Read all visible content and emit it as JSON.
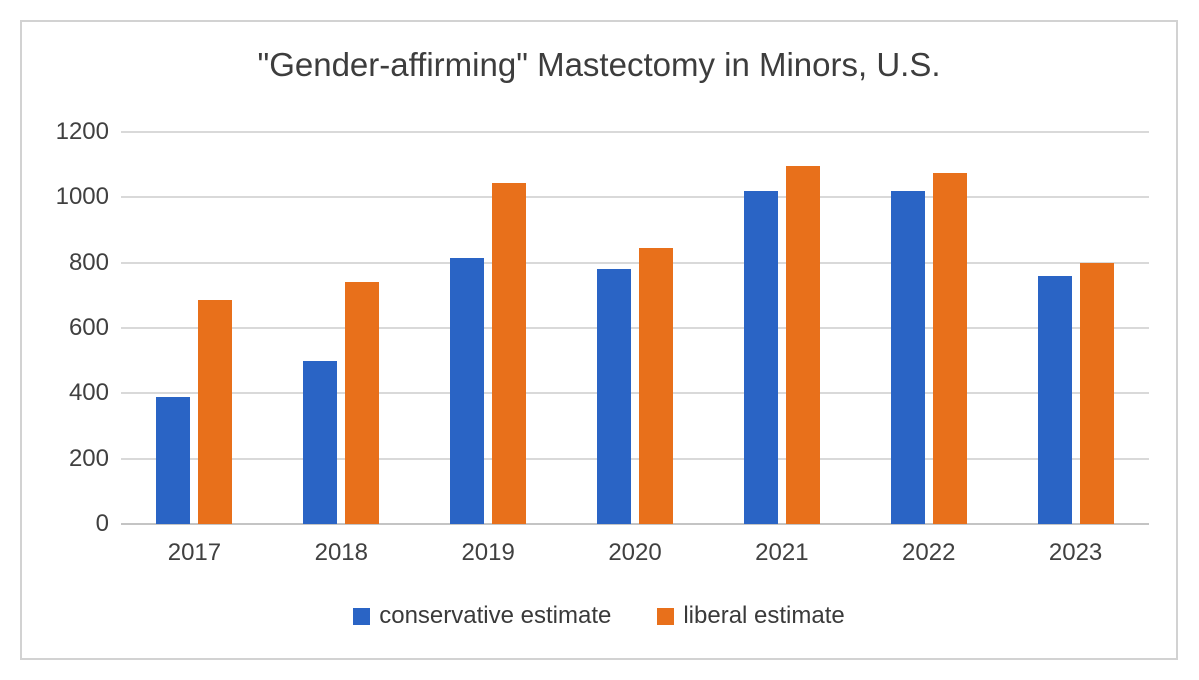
{
  "chart_data": {
    "type": "bar",
    "title": "\"Gender-affirming\" Mastectomy in Minors, U.S.",
    "categories": [
      "2017",
      "2018",
      "2019",
      "2020",
      "2021",
      "2022",
      "2023"
    ],
    "series": [
      {
        "name": "conservative estimate",
        "color": "#2a64c5",
        "values": [
          390,
          500,
          815,
          780,
          1020,
          1020,
          760
        ]
      },
      {
        "name": "liberal estimate",
        "color": "#e8701b",
        "values": [
          685,
          740,
          1045,
          845,
          1095,
          1075,
          800
        ]
      }
    ],
    "xlabel": "",
    "ylabel": "",
    "ylim": [
      0,
      1200
    ],
    "y_ticks": [
      0,
      200,
      400,
      600,
      800,
      1000,
      1200
    ],
    "grid": "horizontal",
    "legend_position": "bottom"
  },
  "colors": {
    "bar_blue": "#2a64c5",
    "bar_orange": "#e8701b",
    "gridline": "#d9d9d9",
    "axis_line": "#c4c4c4",
    "text": "#404040",
    "frame_border": "#d2d2d2",
    "background": "#ffffff"
  }
}
